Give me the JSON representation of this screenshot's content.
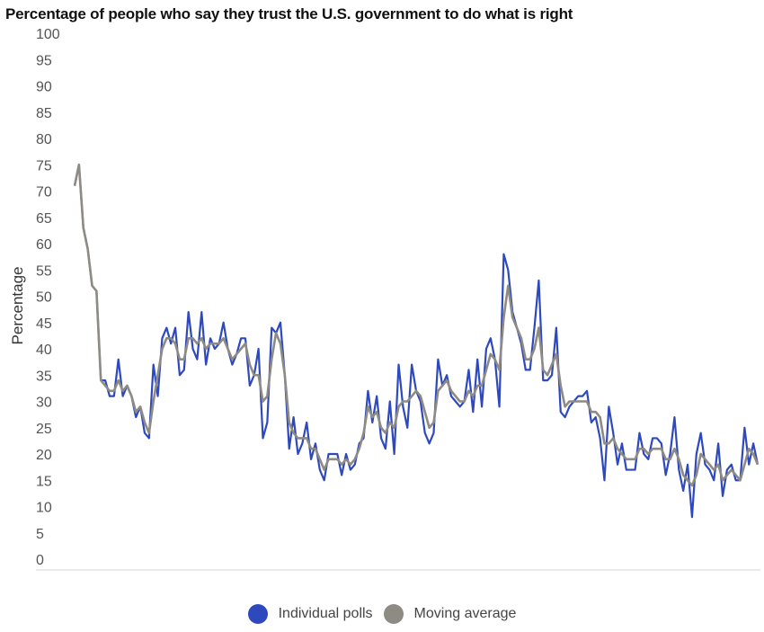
{
  "title": "Percentage of people who say they trust the U.S. government to do what is right",
  "colors": {
    "individual": "#2e49bd",
    "moving": "#8e8a84",
    "axis": "#d6d6d6"
  },
  "chart_data": {
    "type": "line",
    "title": "Percentage of people who say they trust the U.S. government to do what is right",
    "xlabel": "",
    "ylabel": "Percentage",
    "ylim": [
      0,
      100
    ],
    "yticks": [
      0,
      5,
      10,
      15,
      20,
      25,
      30,
      35,
      40,
      45,
      50,
      55,
      60,
      65,
      70,
      75,
      80,
      85,
      90,
      95,
      100
    ],
    "grid": false,
    "legend_position": "bottom-center",
    "series": [
      {
        "name": "Individual polls",
        "values": [
          71,
          75,
          63,
          59,
          52,
          51,
          34,
          34,
          31,
          31,
          38,
          31,
          33,
          31,
          27,
          29,
          24,
          23,
          37,
          31,
          42,
          44,
          41,
          44,
          35,
          36,
          47,
          40,
          38,
          47,
          37,
          42,
          40,
          41,
          45,
          40,
          37,
          39,
          42,
          42,
          33,
          35,
          40,
          23,
          26,
          44,
          43,
          45,
          35,
          21,
          27,
          20,
          22,
          26,
          19,
          22,
          17,
          15,
          20,
          20,
          20,
          16,
          20,
          17,
          18,
          22,
          23,
          32,
          26,
          31,
          23,
          21,
          30,
          20,
          37,
          29,
          25,
          37,
          32,
          30,
          24,
          22,
          24,
          38,
          33,
          35,
          31,
          30,
          29,
          30,
          36,
          28,
          38,
          29,
          40,
          42,
          38,
          29,
          58,
          55,
          47,
          44,
          41,
          36,
          36,
          44,
          53,
          34,
          34,
          35,
          44,
          28,
          27,
          29,
          30,
          31,
          31,
          32,
          26,
          27,
          23,
          15,
          29,
          24,
          18,
          22,
          17,
          17,
          17,
          24,
          20,
          19,
          23,
          23,
          22,
          16,
          20,
          27,
          17,
          13,
          18,
          8,
          20,
          24,
          18,
          17,
          15,
          22,
          12,
          17,
          18,
          15,
          15,
          25,
          18,
          22,
          18
        ]
      },
      {
        "name": "Moving average",
        "values": [
          71,
          75,
          63,
          59,
          52,
          51,
          34,
          33,
          32,
          32,
          34,
          32,
          33,
          31,
          28,
          29,
          26,
          24,
          30,
          35,
          40,
          42,
          42,
          41,
          38,
          38,
          42,
          42,
          41,
          42,
          40,
          41,
          41,
          41,
          42,
          40,
          38,
          39,
          40,
          41,
          37,
          35,
          35,
          30,
          31,
          38,
          43,
          41,
          35,
          26,
          24,
          23,
          23,
          23,
          21,
          21,
          19,
          17,
          19,
          19,
          19,
          18,
          19,
          18,
          19,
          21,
          24,
          29,
          27,
          28,
          25,
          24,
          26,
          25,
          29,
          30,
          30,
          31,
          32,
          31,
          28,
          25,
          26,
          32,
          33,
          34,
          32,
          31,
          30,
          30,
          32,
          31,
          33,
          33,
          36,
          39,
          38,
          36,
          46,
          52,
          46,
          44,
          42,
          38,
          38,
          40,
          44,
          36,
          35,
          37,
          39,
          33,
          29,
          30,
          30,
          30,
          30,
          30,
          28,
          28,
          27,
          22,
          22,
          23,
          21,
          20,
          19,
          19,
          19,
          21,
          21,
          20,
          21,
          21,
          21,
          19,
          19,
          21,
          19,
          16,
          15,
          14,
          16,
          20,
          19,
          18,
          17,
          18,
          15,
          16,
          17,
          16,
          15,
          18,
          21,
          20,
          18
        ]
      }
    ]
  },
  "legend": {
    "items": [
      {
        "label": "Individual polls",
        "color": "#2e49bd"
      },
      {
        "label": "Moving average",
        "color": "#8e8a84"
      }
    ]
  }
}
